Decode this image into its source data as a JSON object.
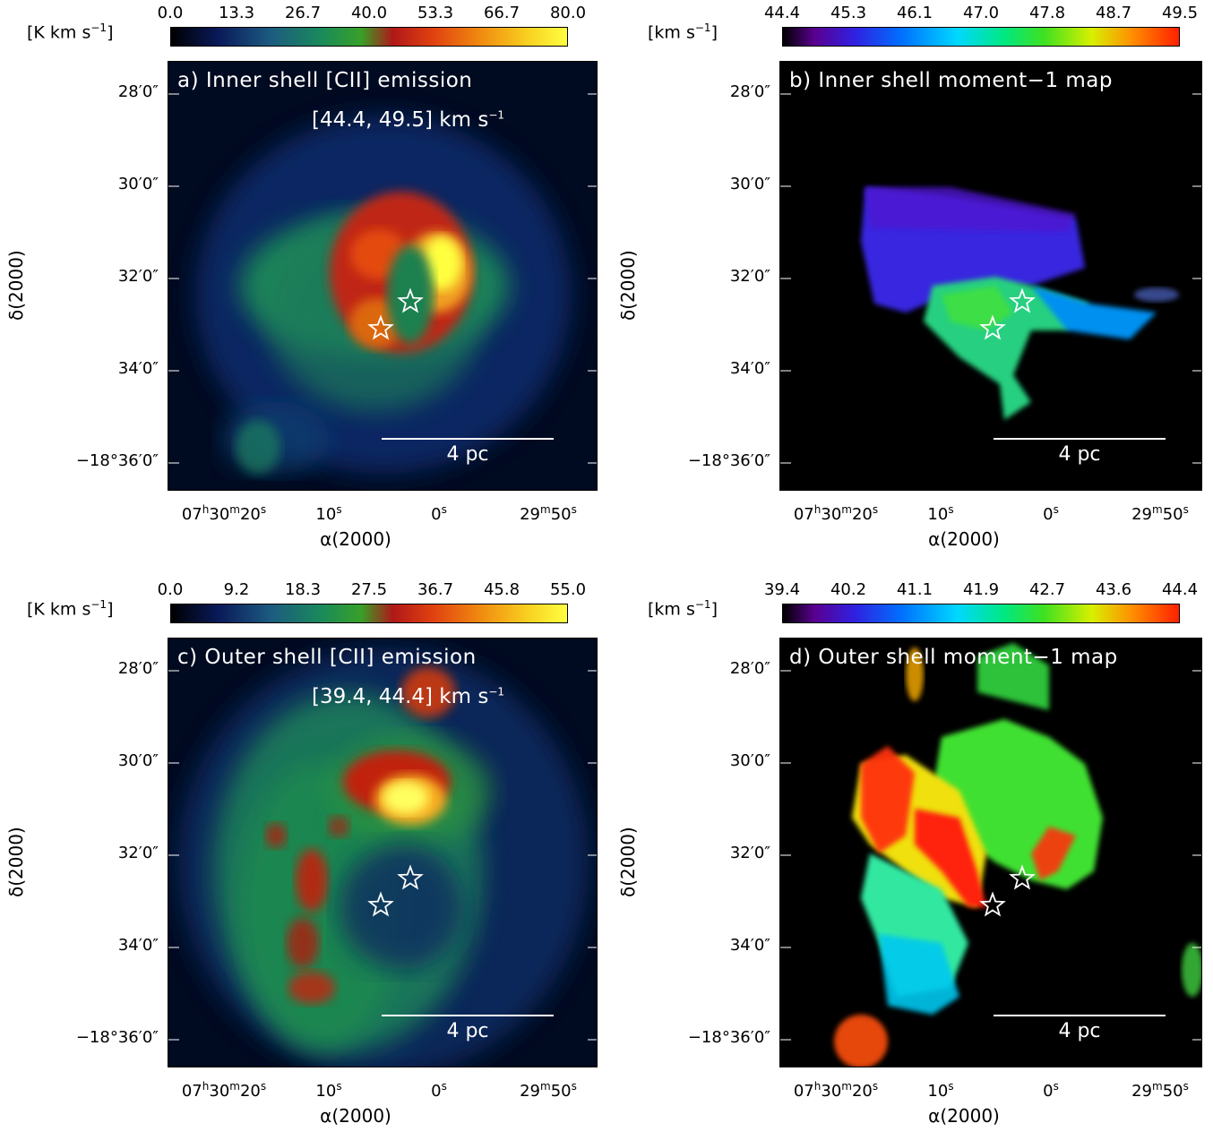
{
  "panels": [
    {
      "id": "a",
      "title": "a) Inner shell [CII] emission",
      "vrange": "[44.4, 49.5] km s",
      "vrange_sup": "−1",
      "colorbar": {
        "unit": "[K km s",
        "unit_sup": "−1",
        "unit_close": "]",
        "ticks": [
          "0.0",
          "13.3",
          "26.7",
          "40.0",
          "53.3",
          "66.7",
          "80.0"
        ],
        "palette": "heat"
      },
      "scalebar": "4 pc",
      "map_type": "emission_inner"
    },
    {
      "id": "b",
      "title": "b) Inner shell moment−1 map",
      "vrange": "",
      "colorbar": {
        "unit": "[km s",
        "unit_sup": "−1",
        "unit_close": "]",
        "ticks": [
          "44.4",
          "45.3",
          "46.1",
          "47.0",
          "47.8",
          "48.7",
          "49.5"
        ],
        "palette": "rainbow"
      },
      "scalebar": "4 pc",
      "map_type": "moment_inner"
    },
    {
      "id": "c",
      "title": "c) Outer shell [CII] emission",
      "vrange": "[39.4, 44.4] km s",
      "vrange_sup": "−1",
      "colorbar": {
        "unit": "[K km s",
        "unit_sup": "−1",
        "unit_close": "]",
        "ticks": [
          "0.0",
          "9.2",
          "18.3",
          "27.5",
          "36.7",
          "45.8",
          "55.0"
        ],
        "palette": "heat"
      },
      "scalebar": "4 pc",
      "map_type": "emission_outer"
    },
    {
      "id": "d",
      "title": "d) Outer shell moment−1 map",
      "vrange": "",
      "colorbar": {
        "unit": "[km s",
        "unit_sup": "−1",
        "unit_close": "]",
        "ticks": [
          "39.4",
          "40.2",
          "41.1",
          "41.9",
          "42.7",
          "43.6",
          "44.4"
        ],
        "palette": "rainbow"
      },
      "scalebar": "4 pc",
      "map_type": "moment_outer"
    }
  ],
  "axes": {
    "ylabel": "δ(2000)",
    "xlabel": "α(2000)",
    "yticks": [
      "28′0″",
      "30′0″",
      "32′0″",
      "34′0″",
      "−18°36′0″"
    ],
    "xticks": [
      {
        "main": "07",
        "sup1": "h",
        "mid": "30",
        "sup2": "m",
        "end": "20",
        "sup3": "s"
      },
      {
        "main": "10",
        "sup1": "s"
      },
      {
        "main": "0",
        "sup1": "s"
      },
      {
        "main": "29",
        "sup1": "m",
        "mid": "50",
        "sup2": "s"
      }
    ]
  },
  "colors": {
    "background": "#000010",
    "star_stroke": "#ffffff",
    "scalebar": "#ffffff"
  }
}
